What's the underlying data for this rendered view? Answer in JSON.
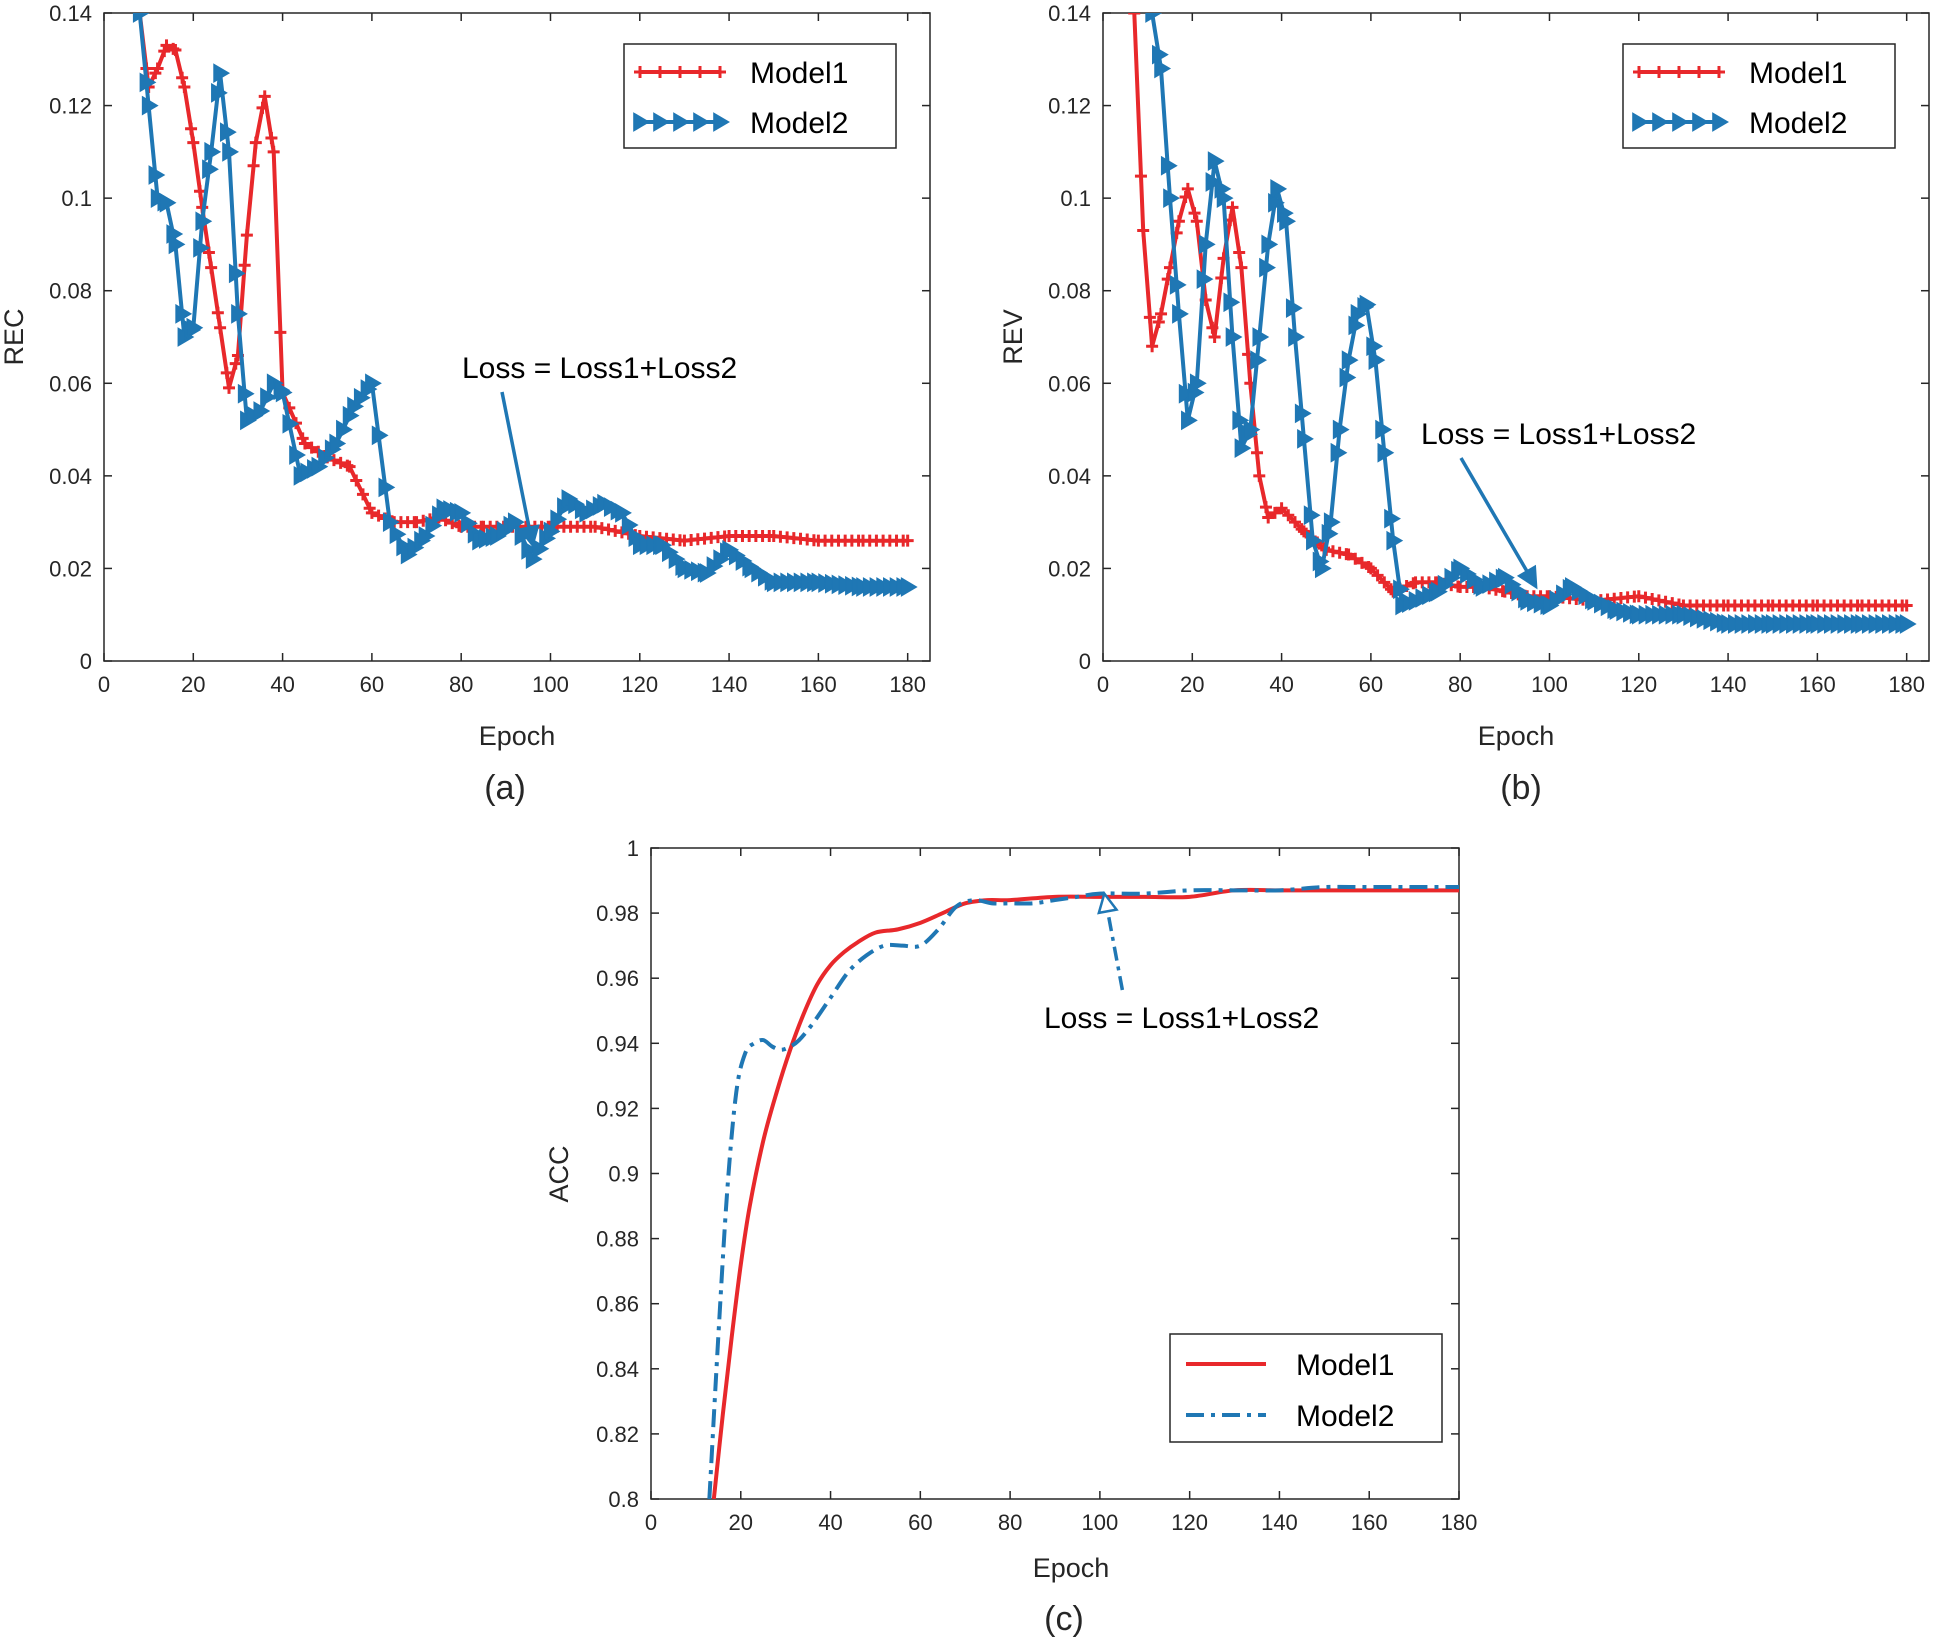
{
  "chart_data": [
    {
      "id": "a",
      "type": "line",
      "caption": "(a)",
      "xlabel": "Epoch",
      "ylabel": "REC",
      "xlim": [
        0,
        185
      ],
      "ylim": [
        0,
        0.14
      ],
      "xticks": [
        0,
        20,
        40,
        60,
        80,
        100,
        120,
        140,
        160,
        180
      ],
      "yticks": [
        0,
        0.02,
        0.04,
        0.06,
        0.08,
        0.1,
        0.12,
        0.14
      ],
      "ytick_labels": [
        "0",
        "0.02",
        "0.04",
        "0.06",
        "0.08",
        "0.1",
        "0.12",
        "0.14"
      ],
      "legend_position": "top-right",
      "annotation": {
        "text": "Loss = Loss1+Loss2",
        "arrow_to": [
          96,
          0.025
        ]
      },
      "series": [
        {
          "name": "Model1",
          "color": "#e8282b",
          "marker": "plus",
          "x": [
            8,
            10,
            12,
            14,
            16,
            18,
            20,
            22,
            24,
            26,
            28,
            30,
            32,
            34,
            36,
            38,
            40,
            45,
            50,
            55,
            60,
            65,
            70,
            75,
            80,
            85,
            90,
            95,
            100,
            110,
            120,
            130,
            140,
            150,
            160,
            170,
            180
          ],
          "y": [
            0.14,
            0.124,
            0.128,
            0.133,
            0.132,
            0.124,
            0.112,
            0.098,
            0.085,
            0.072,
            0.059,
            0.066,
            0.092,
            0.112,
            0.122,
            0.11,
            0.058,
            0.047,
            0.044,
            0.042,
            0.032,
            0.03,
            0.03,
            0.031,
            0.029,
            0.029,
            0.029,
            0.029,
            0.029,
            0.029,
            0.027,
            0.026,
            0.027,
            0.027,
            0.026,
            0.026,
            0.026
          ]
        },
        {
          "name": "Model2",
          "color": "#1f77b4",
          "marker": "triangle-right",
          "x": [
            8,
            10,
            12,
            14,
            16,
            18,
            20,
            22,
            24,
            26,
            28,
            30,
            32,
            35,
            38,
            40,
            44,
            48,
            52,
            56,
            60,
            64,
            68,
            72,
            76,
            80,
            84,
            88,
            92,
            96,
            100,
            104,
            108,
            112,
            116,
            120,
            125,
            130,
            135,
            140,
            145,
            150,
            160,
            170,
            180
          ],
          "y": [
            0.14,
            0.12,
            0.1,
            0.099,
            0.09,
            0.07,
            0.072,
            0.095,
            0.11,
            0.127,
            0.11,
            0.075,
            0.052,
            0.054,
            0.06,
            0.058,
            0.04,
            0.042,
            0.047,
            0.055,
            0.06,
            0.03,
            0.023,
            0.027,
            0.033,
            0.032,
            0.026,
            0.027,
            0.03,
            0.022,
            0.028,
            0.035,
            0.032,
            0.034,
            0.032,
            0.025,
            0.025,
            0.02,
            0.019,
            0.024,
            0.02,
            0.017,
            0.017,
            0.016,
            0.016
          ]
        }
      ]
    },
    {
      "id": "b",
      "type": "line",
      "caption": "(b)",
      "xlabel": "Epoch",
      "ylabel": "REV",
      "xlim": [
        0,
        185
      ],
      "ylim": [
        0,
        0.14
      ],
      "xticks": [
        0,
        20,
        40,
        60,
        80,
        100,
        120,
        140,
        160,
        180
      ],
      "yticks": [
        0,
        0.02,
        0.04,
        0.06,
        0.08,
        0.1,
        0.12,
        0.14
      ],
      "ytick_labels": [
        "0",
        "0.02",
        "0.04",
        "0.06",
        "0.08",
        "0.1",
        "0.12",
        "0.14"
      ],
      "legend_position": "top-right",
      "annotation": {
        "text": "Loss = Loss1+Loss2",
        "arrow_to": [
          97,
          0.016
        ]
      },
      "series": [
        {
          "name": "Model1",
          "color": "#e8282b",
          "marker": "plus",
          "x": [
            7,
            9,
            11,
            13,
            15,
            17,
            19,
            21,
            23,
            25,
            27,
            29,
            31,
            33,
            35,
            37,
            40,
            45,
            50,
            55,
            60,
            65,
            70,
            75,
            80,
            85,
            90,
            95,
            100,
            110,
            120,
            130,
            140,
            150,
            160,
            170,
            180
          ],
          "y": [
            0.14,
            0.093,
            0.068,
            0.075,
            0.085,
            0.095,
            0.102,
            0.095,
            0.078,
            0.07,
            0.087,
            0.098,
            0.085,
            0.06,
            0.04,
            0.031,
            0.033,
            0.028,
            0.024,
            0.023,
            0.02,
            0.015,
            0.017,
            0.017,
            0.016,
            0.016,
            0.015,
            0.014,
            0.014,
            0.013,
            0.014,
            0.012,
            0.012,
            0.012,
            0.012,
            0.012,
            0.012
          ]
        },
        {
          "name": "Model2",
          "color": "#1f77b4",
          "marker": "triangle-right",
          "x": [
            11,
            13,
            15,
            17,
            19,
            21,
            23,
            25,
            27,
            29,
            31,
            33,
            35,
            37,
            39,
            41,
            43,
            45,
            47,
            49,
            51,
            53,
            55,
            57,
            59,
            61,
            63,
            65,
            67,
            70,
            75,
            80,
            85,
            90,
            95,
            100,
            105,
            110,
            115,
            120,
            130,
            140,
            150,
            160,
            170,
            180
          ],
          "y": [
            0.14,
            0.128,
            0.1,
            0.075,
            0.052,
            0.06,
            0.09,
            0.108,
            0.1,
            0.07,
            0.046,
            0.05,
            0.07,
            0.09,
            0.102,
            0.095,
            0.07,
            0.048,
            0.026,
            0.02,
            0.03,
            0.05,
            0.065,
            0.075,
            0.077,
            0.065,
            0.045,
            0.026,
            0.012,
            0.013,
            0.015,
            0.02,
            0.016,
            0.018,
            0.013,
            0.012,
            0.016,
            0.013,
            0.011,
            0.01,
            0.01,
            0.008,
            0.008,
            0.008,
            0.008,
            0.008
          ]
        }
      ]
    },
    {
      "id": "c",
      "type": "line",
      "caption": "(c)",
      "xlabel": "Epoch",
      "ylabel": "ACC",
      "xlim": [
        0,
        180
      ],
      "ylim": [
        0.8,
        1
      ],
      "xticks": [
        0,
        20,
        40,
        60,
        80,
        100,
        120,
        140,
        160,
        180
      ],
      "yticks": [
        0.8,
        0.82,
        0.84,
        0.86,
        0.88,
        0.9,
        0.92,
        0.94,
        0.96,
        0.98,
        1
      ],
      "ytick_labels": [
        "0.8",
        "0.82",
        "0.84",
        "0.86",
        "0.88",
        "0.9",
        "0.92",
        "0.94",
        "0.96",
        "0.98",
        "1"
      ],
      "legend_position": "bottom-right",
      "annotation": {
        "text": "Loss = Loss1+Loss2",
        "arrow_to": [
          101,
          0.986
        ]
      },
      "series": [
        {
          "name": "Model1",
          "color": "#e8282b",
          "style": "solid",
          "x": [
            14,
            16,
            18,
            20,
            22,
            25,
            28,
            31,
            34,
            37,
            40,
            43,
            46,
            50,
            55,
            60,
            65,
            70,
            75,
            80,
            90,
            100,
            110,
            120,
            130,
            140,
            150,
            160,
            170,
            180
          ],
          "y": [
            0.8,
            0.826,
            0.85,
            0.872,
            0.89,
            0.91,
            0.925,
            0.938,
            0.949,
            0.958,
            0.964,
            0.968,
            0.971,
            0.974,
            0.975,
            0.977,
            0.98,
            0.983,
            0.984,
            0.984,
            0.985,
            0.985,
            0.985,
            0.985,
            0.987,
            0.987,
            0.987,
            0.987,
            0.987,
            0.987
          ]
        },
        {
          "name": "Model2",
          "color": "#1f77b4",
          "style": "dashdot",
          "x": [
            13,
            15,
            17,
            19,
            21,
            23,
            25,
            27,
            29,
            31,
            33,
            36,
            40,
            44,
            48,
            52,
            56,
            60,
            64,
            68,
            72,
            76,
            80,
            85,
            90,
            95,
            100,
            110,
            120,
            130,
            140,
            150,
            160,
            170,
            180
          ],
          "y": [
            0.8,
            0.85,
            0.895,
            0.925,
            0.937,
            0.94,
            0.941,
            0.939,
            0.938,
            0.939,
            0.941,
            0.946,
            0.954,
            0.962,
            0.967,
            0.97,
            0.97,
            0.97,
            0.975,
            0.982,
            0.984,
            0.983,
            0.983,
            0.983,
            0.984,
            0.985,
            0.986,
            0.986,
            0.987,
            0.987,
            0.987,
            0.988,
            0.988,
            0.988,
            0.988
          ]
        }
      ]
    }
  ]
}
